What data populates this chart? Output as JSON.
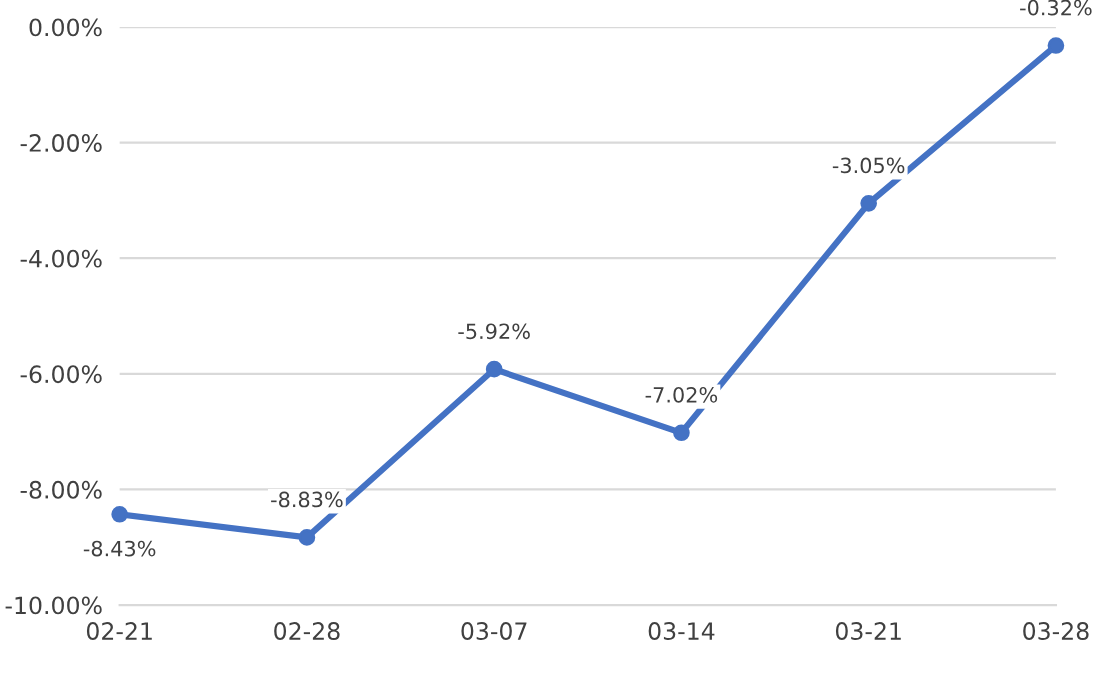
{
  "chart_data": {
    "type": "line",
    "categories": [
      "02-21",
      "02-28",
      "03-07",
      "03-14",
      "03-21",
      "03-28"
    ],
    "series": [
      {
        "color": "#4472c4",
        "values": [
          -8.43,
          -8.83,
          -5.92,
          -7.02,
          -3.05,
          -0.32
        ],
        "value_labels": [
          "-8.43%",
          "-8.83%",
          "-5.92%",
          "-7.02%",
          "-3.05%",
          "-0.32%"
        ]
      }
    ],
    "ylim": [
      -10,
      0
    ],
    "yticks": [
      {
        "value": -10,
        "label": "-10.00%"
      },
      {
        "value": -8,
        "label": "-8.00%"
      },
      {
        "value": -6,
        "label": "-6.00%"
      },
      {
        "value": -4,
        "label": "-4.00%"
      },
      {
        "value": -2,
        "label": "-2.00%"
      },
      {
        "value": 0,
        "label": "0.00%"
      }
    ],
    "grid": "y",
    "marker": "circle",
    "line_style": "solid"
  }
}
